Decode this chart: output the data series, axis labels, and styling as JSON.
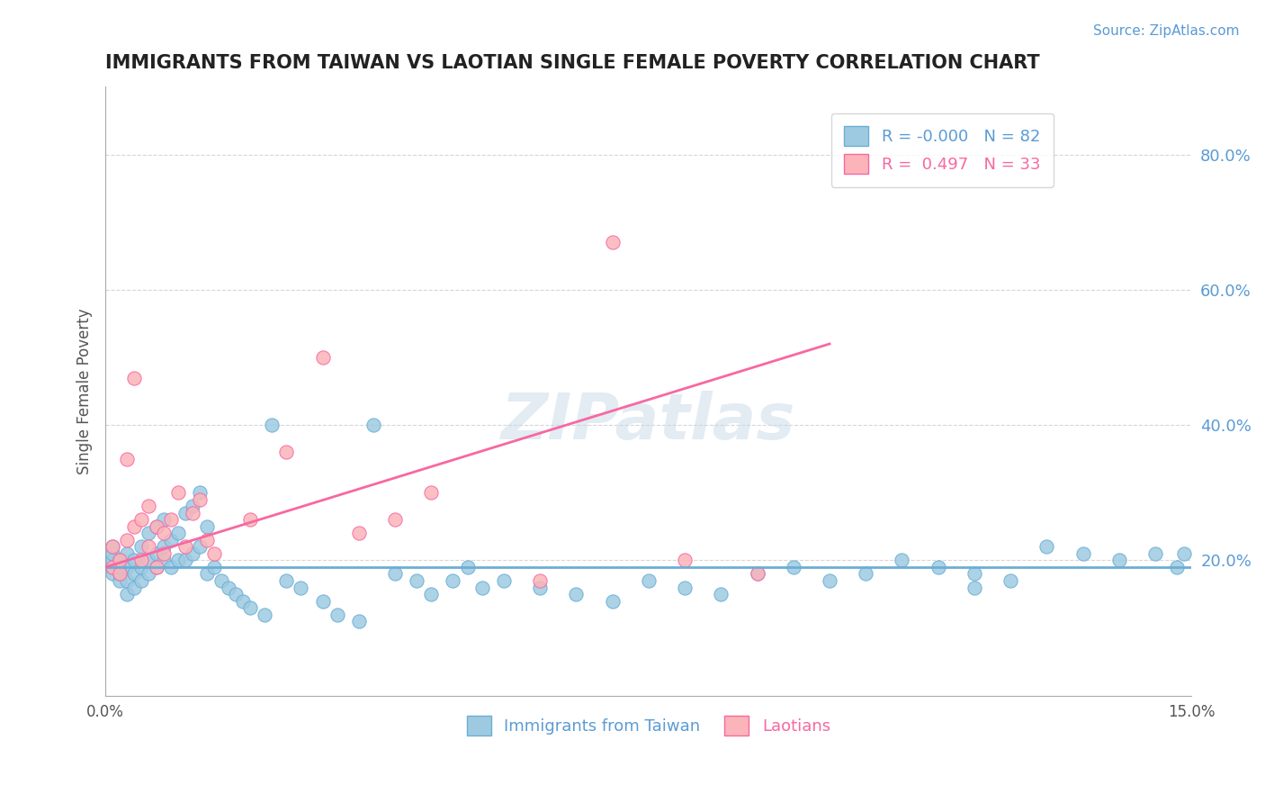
{
  "title": "IMMIGRANTS FROM TAIWAN VS LAOTIAN SINGLE FEMALE POVERTY CORRELATION CHART",
  "source_text": "Source: ZipAtlas.com",
  "xlabel": "",
  "ylabel": "Single Female Poverty",
  "x_min": 0.0,
  "x_max": 0.15,
  "y_min": 0.0,
  "y_max": 0.9,
  "y_ticks": [
    0.2,
    0.4,
    0.6,
    0.8
  ],
  "y_tick_labels": [
    "20.0%",
    "40.0%",
    "60.0%",
    "80.0%"
  ],
  "x_ticks": [
    0.0,
    0.015,
    0.03,
    0.045,
    0.06,
    0.075,
    0.09,
    0.105,
    0.12,
    0.135,
    0.15
  ],
  "x_tick_labels": [
    "0.0%",
    "",
    "",
    "",
    "",
    "",
    "",
    "",
    "",
    "",
    "15.0%"
  ],
  "blue_R": "-0.000",
  "blue_N": "82",
  "pink_R": "0.497",
  "pink_N": "33",
  "blue_color": "#6baed6",
  "pink_color": "#f768a1",
  "blue_scatter_color": "#9ecae1",
  "pink_scatter_color": "#fbb4b9",
  "watermark": "ZIPatlas",
  "watermark_color": "#c8d8e8",
  "legend_label_blue": "Immigrants from Taiwan",
  "legend_label_pink": "Laotians",
  "blue_x": [
    0.001,
    0.001,
    0.001,
    0.001,
    0.001,
    0.002,
    0.002,
    0.002,
    0.002,
    0.003,
    0.003,
    0.003,
    0.003,
    0.004,
    0.004,
    0.004,
    0.005,
    0.005,
    0.005,
    0.006,
    0.006,
    0.006,
    0.007,
    0.007,
    0.007,
    0.008,
    0.008,
    0.008,
    0.009,
    0.009,
    0.01,
    0.01,
    0.011,
    0.011,
    0.012,
    0.012,
    0.013,
    0.013,
    0.014,
    0.014,
    0.015,
    0.016,
    0.017,
    0.018,
    0.019,
    0.02,
    0.022,
    0.023,
    0.025,
    0.027,
    0.03,
    0.032,
    0.035,
    0.037,
    0.04,
    0.043,
    0.045,
    0.05,
    0.055,
    0.06,
    0.065,
    0.07,
    0.075,
    0.08,
    0.085,
    0.09,
    0.095,
    0.1,
    0.105,
    0.11,
    0.115,
    0.12,
    0.13,
    0.135,
    0.14,
    0.145,
    0.148,
    0.149,
    0.12,
    0.125,
    0.048,
    0.052
  ],
  "blue_y": [
    0.18,
    0.19,
    0.2,
    0.21,
    0.22,
    0.17,
    0.18,
    0.19,
    0.2,
    0.15,
    0.17,
    0.19,
    0.21,
    0.16,
    0.18,
    0.2,
    0.17,
    0.19,
    0.22,
    0.18,
    0.2,
    0.24,
    0.19,
    0.21,
    0.25,
    0.2,
    0.22,
    0.26,
    0.19,
    0.23,
    0.2,
    0.24,
    0.2,
    0.27,
    0.21,
    0.28,
    0.22,
    0.3,
    0.18,
    0.25,
    0.19,
    0.17,
    0.16,
    0.15,
    0.14,
    0.13,
    0.12,
    0.4,
    0.17,
    0.16,
    0.14,
    0.12,
    0.11,
    0.4,
    0.18,
    0.17,
    0.15,
    0.19,
    0.17,
    0.16,
    0.15,
    0.14,
    0.17,
    0.16,
    0.15,
    0.18,
    0.19,
    0.17,
    0.18,
    0.2,
    0.19,
    0.18,
    0.22,
    0.21,
    0.2,
    0.21,
    0.19,
    0.21,
    0.16,
    0.17,
    0.17,
    0.16
  ],
  "pink_x": [
    0.001,
    0.001,
    0.002,
    0.002,
    0.003,
    0.003,
    0.004,
    0.004,
    0.005,
    0.005,
    0.006,
    0.006,
    0.007,
    0.007,
    0.008,
    0.008,
    0.009,
    0.01,
    0.011,
    0.012,
    0.013,
    0.014,
    0.015,
    0.02,
    0.025,
    0.03,
    0.035,
    0.04,
    0.045,
    0.06,
    0.07,
    0.08,
    0.09
  ],
  "pink_y": [
    0.22,
    0.19,
    0.18,
    0.2,
    0.23,
    0.35,
    0.25,
    0.47,
    0.2,
    0.26,
    0.22,
    0.28,
    0.19,
    0.25,
    0.21,
    0.24,
    0.26,
    0.3,
    0.22,
    0.27,
    0.29,
    0.23,
    0.21,
    0.26,
    0.36,
    0.5,
    0.24,
    0.26,
    0.3,
    0.17,
    0.67,
    0.2,
    0.18
  ],
  "blue_trend_x": [
    0.0,
    0.15
  ],
  "blue_trend_y": [
    0.19,
    0.19
  ],
  "pink_trend_x": [
    0.0,
    0.1
  ],
  "pink_trend_y": [
    0.19,
    0.52
  ]
}
